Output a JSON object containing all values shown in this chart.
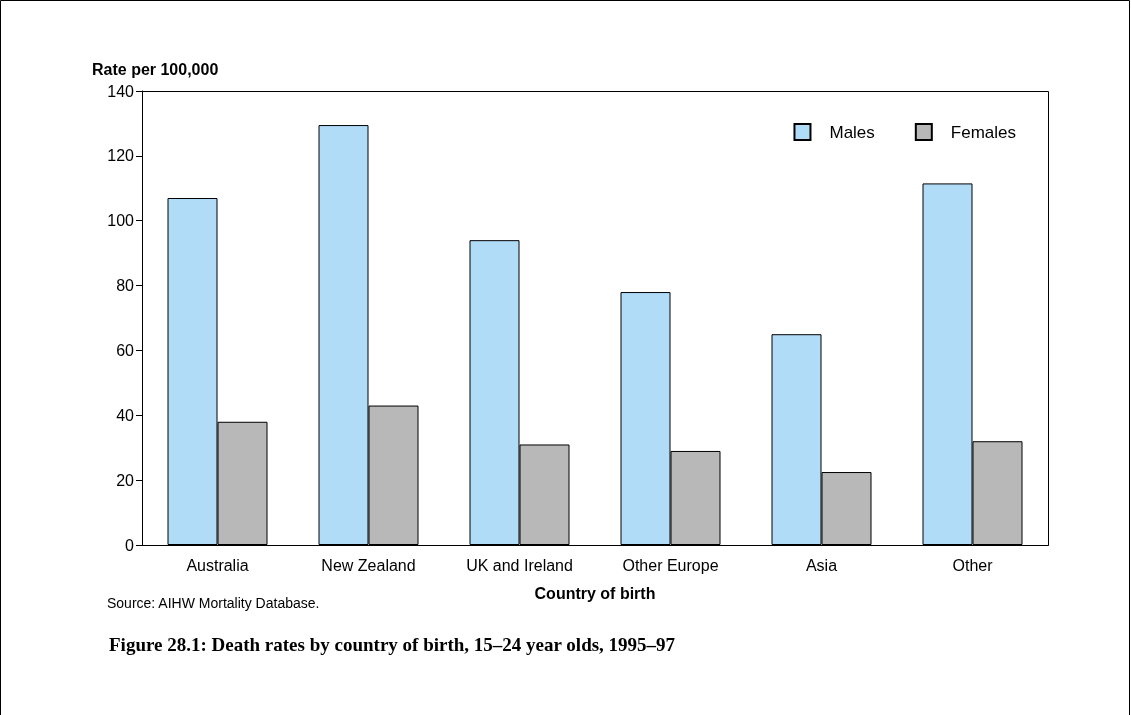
{
  "chart_data": {
    "type": "bar",
    "title": "Figure 28.1: Death rates by country of birth, 15–24 year olds, 1995–97",
    "xlabel": "Country of birth",
    "ylabel": "Rate per 100,000",
    "annotations": [
      "Source: AIHW Mortality Database."
    ],
    "categories": [
      "Australia",
      "New Zealand",
      "UK and Ireland",
      "Other Europe",
      "Asia",
      "Other"
    ],
    "series": [
      {
        "name": "Males",
        "color": "#b0dcf8",
        "values": [
          107,
          129.5,
          94,
          78,
          65,
          111.5
        ]
      },
      {
        "name": "Females",
        "color": "#b8b8b8",
        "values": [
          38,
          43,
          31,
          29,
          22.5,
          32
        ]
      }
    ],
    "ylim": [
      0,
      140
    ],
    "yticks": [
      0,
      20,
      40,
      60,
      80,
      100,
      120,
      140
    ],
    "grid": false,
    "legend": "top right"
  }
}
